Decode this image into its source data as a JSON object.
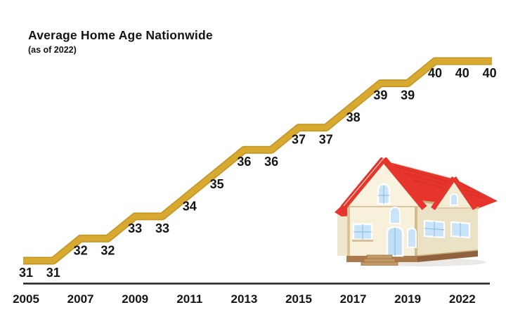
{
  "title": "Average Home Age Nationwide",
  "subtitle": "(as of 2022)",
  "colors": {
    "line": "#D8A930",
    "line_edge": "#C3941F",
    "text": "#151515",
    "axis": "#222222",
    "background": "#FFFFFF",
    "house_roof": "#E5352C"
  },
  "icons": {
    "house": "house-illustration"
  },
  "chart_data": {
    "type": "line",
    "subtype": "step",
    "title": "Average Home Age Nationwide",
    "subtitle": "(as of 2022)",
    "x": [
      2005,
      2006,
      2007,
      2008,
      2009,
      2010,
      2011,
      2012,
      2013,
      2014,
      2015,
      2016,
      2017,
      2018,
      2019,
      2020,
      2021,
      2022
    ],
    "values": [
      31,
      31,
      32,
      32,
      33,
      33,
      34,
      35,
      36,
      36,
      37,
      37,
      38,
      39,
      39,
      40,
      40,
      40
    ],
    "x_tick_labels": [
      "2005",
      "2007",
      "2009",
      "2011",
      "2013",
      "2015",
      "2017",
      "2019",
      "2022"
    ],
    "xlabel": "",
    "ylabel": "",
    "ylim": [
      30,
      41
    ],
    "grid": false,
    "legend": "none",
    "data_labels": true
  }
}
